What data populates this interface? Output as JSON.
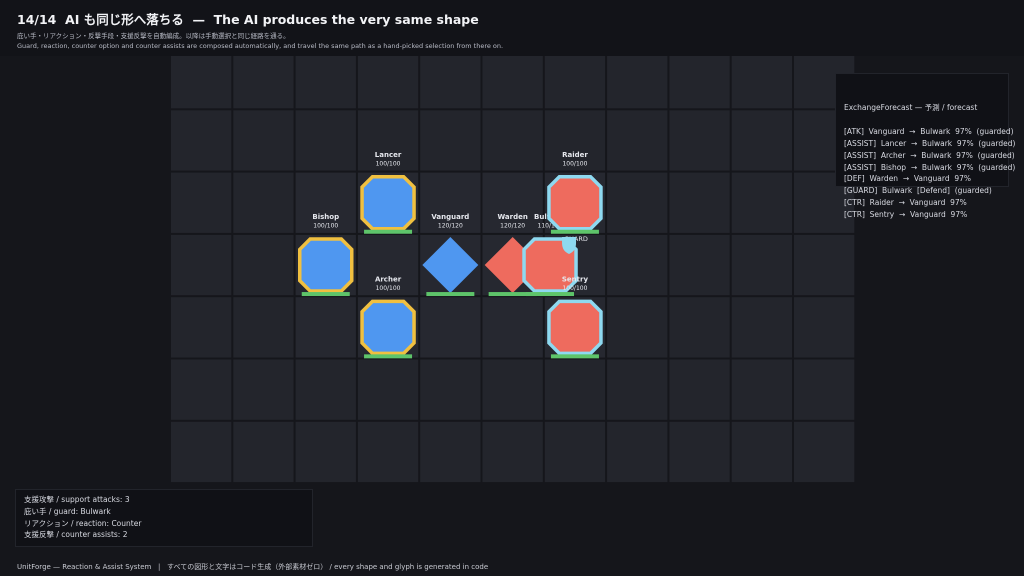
{
  "header": {
    "title": "14/14  AI も同じ形へ落ちる  —  The AI produces the very same shape",
    "subtitle_ja": "庇い手・リアクション・反撃手段・支援反撃を自動編成。以降は手動選択と同じ経路を通る。",
    "subtitle_en": "Guard, reaction, counter option and counter assists are composed automatically, and travel the same path as a hand-picked selection from there on."
  },
  "units": [
    {
      "name": "Lancer",
      "hp": "100/100"
    },
    {
      "name": "Bishop",
      "hp": "100/100"
    },
    {
      "name": "Vanguard",
      "hp": "120/120"
    },
    {
      "name": "Warden",
      "hp": "120/120"
    },
    {
      "name": "Bulwark",
      "hp": "110/110",
      "status": "GUARD"
    },
    {
      "name": "Raider",
      "hp": "100/100"
    },
    {
      "name": "Archer",
      "hp": "100/100"
    },
    {
      "name": "Sentry",
      "hp": "100/100"
    }
  ],
  "forecast": {
    "title": "ExchangeForecast — 予測 / forecast",
    "lines": [
      "[ATK]  Vanguard  →  Bulwark  97%  (guarded)",
      "[ASSIST]  Lancer  →  Bulwark  97%  (guarded)",
      "[ASSIST]  Archer  →  Bulwark  97%  (guarded)",
      "[ASSIST]  Bishop  →  Bulwark  97%  (guarded)",
      "[DEF]  Warden  →  Vanguard  97%",
      "[GUARD]  Bulwark  [Defend]  (guarded)",
      "[CTR]  Raider  →  Vanguard  97%",
      "[CTR]  Sentry  →  Vanguard  97%"
    ]
  },
  "stats": {
    "lines": [
      "支援攻撃 / support attacks: 3",
      "庇い手 / guard: Bulwark",
      "リアクション / reaction: Counter",
      "支援反撃 / counter assists: 2"
    ]
  },
  "footer": "UnitForge — Reaction & Assist System   |   すべての図形と文字はコード生成（外部素材ゼロ） / every shape and glyph is generated in code"
}
